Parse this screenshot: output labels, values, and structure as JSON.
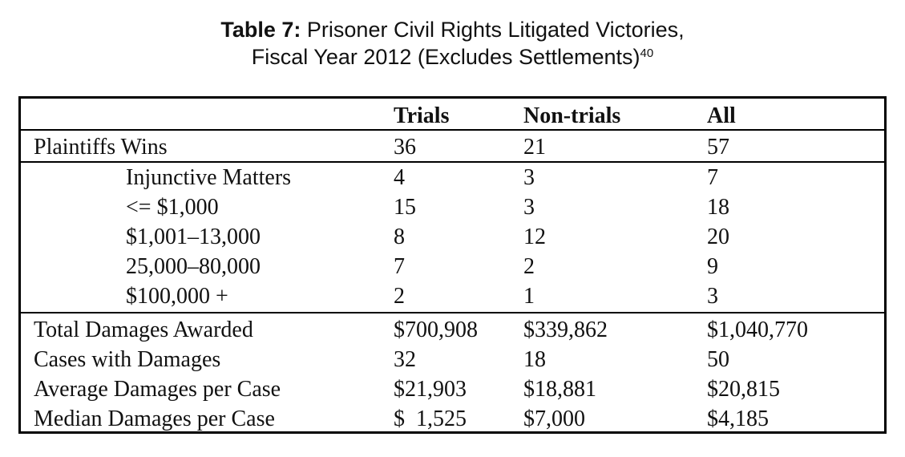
{
  "title": {
    "label": "Table 7:",
    "text": "Prisoner Civil Rights Litigated Victories,",
    "line2": "Fiscal Year 2012 (Excludes Settlements)",
    "footnote": "40"
  },
  "table": {
    "columns": [
      "",
      "Trials",
      "Non-trials",
      "All"
    ],
    "rows": [
      {
        "label": "Plaintiffs Wins",
        "values": [
          "36",
          "21",
          "57"
        ]
      },
      {
        "label": "Injunctive Matters",
        "values": [
          "4",
          "3",
          "7"
        ]
      },
      {
        "label": "<= $1,000",
        "values": [
          "15",
          "3",
          "18"
        ]
      },
      {
        "label": "$1,001–13,000",
        "values": [
          "8",
          "12",
          "20"
        ]
      },
      {
        "label": "25,000–80,000",
        "values": [
          "7",
          "2",
          "9"
        ]
      },
      {
        "label": "$100,000 +",
        "values": [
          "2",
          "1",
          "3"
        ]
      },
      {
        "label": "Total Damages Awarded",
        "values": [
          "$700,908",
          "$339,862",
          "$1,040,770"
        ]
      },
      {
        "label": "Cases with Damages",
        "values": [
          "32",
          "18",
          "50"
        ]
      },
      {
        "label": "Average Damages per Case",
        "values": [
          "$21,903",
          "$18,881",
          "$20,815"
        ]
      },
      {
        "label": "Median Damages per Case",
        "values": [
          "$  1,525",
          "$7,000",
          "$4,185"
        ]
      }
    ]
  }
}
